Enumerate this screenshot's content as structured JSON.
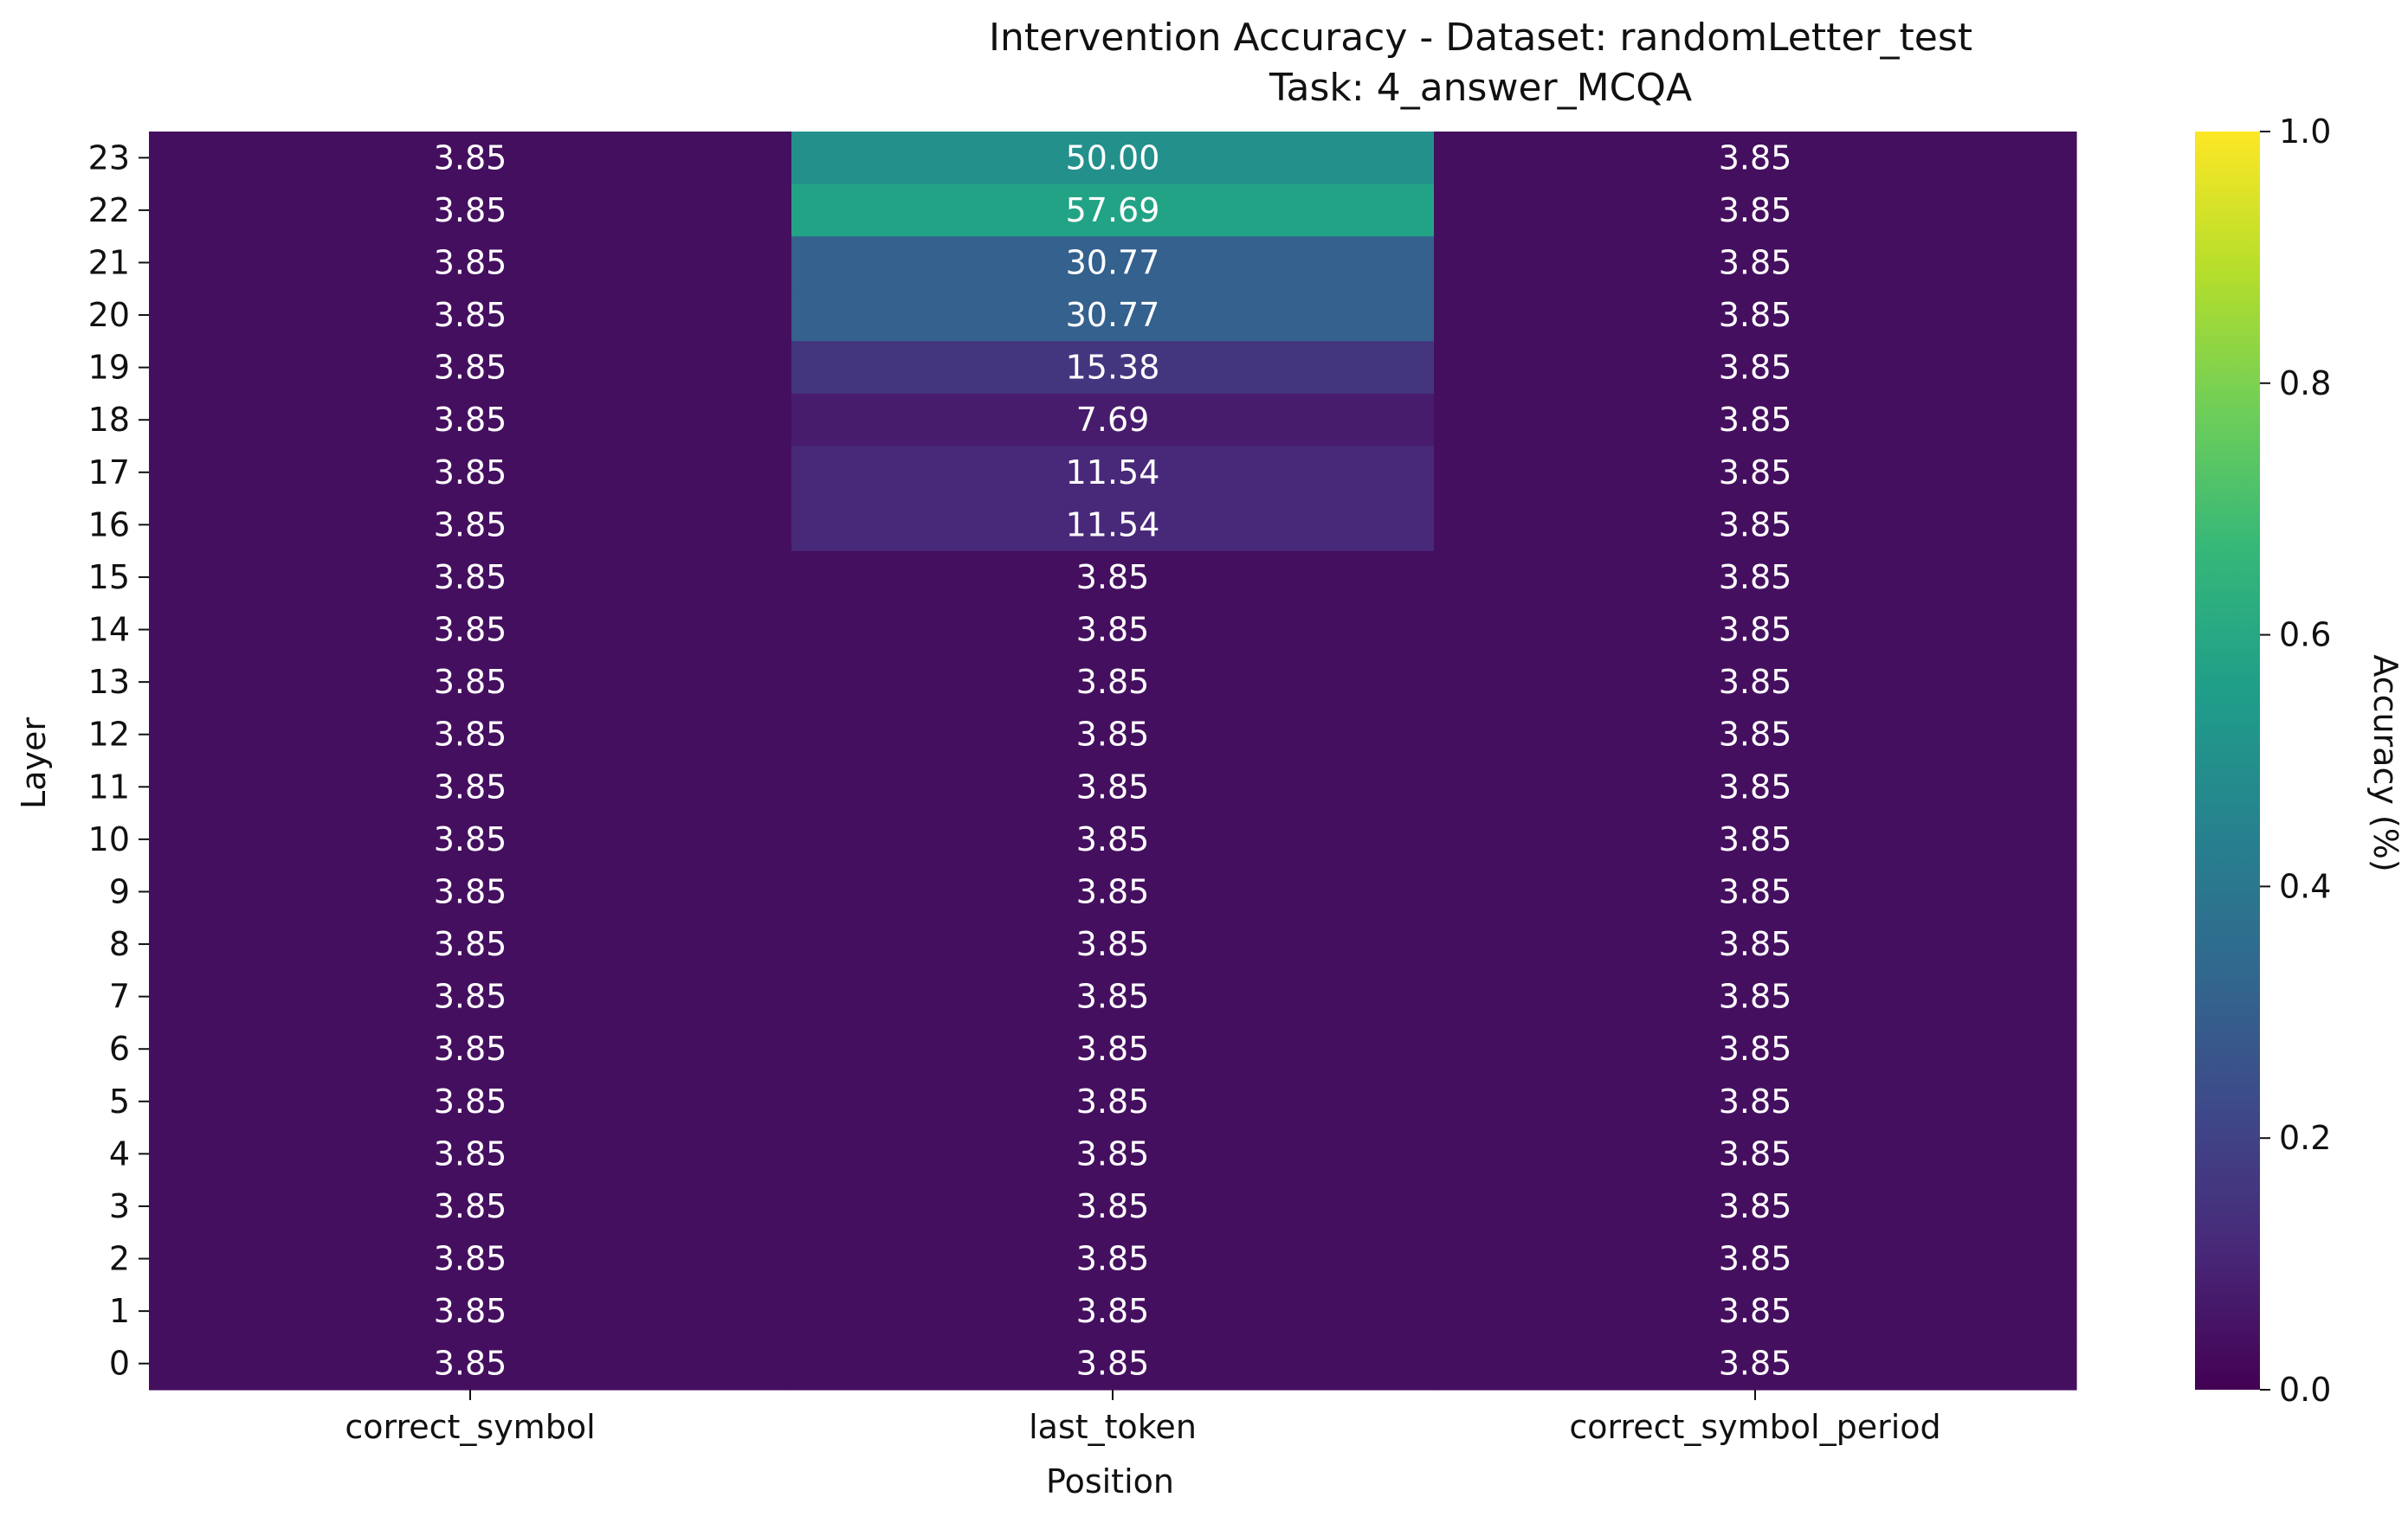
{
  "chart_data": {
    "type": "heatmap",
    "title": "Intervention Accuracy - Dataset: randomLetter_test",
    "subtitle": "Task: 4_answer_MCQA",
    "xlabel": "Position",
    "ylabel": "Layer",
    "x_categories": [
      "correct_symbol",
      "last_token",
      "correct_symbol_period"
    ],
    "y_categories": [
      "23",
      "22",
      "21",
      "20",
      "19",
      "18",
      "17",
      "16",
      "15",
      "14",
      "13",
      "12",
      "11",
      "10",
      "9",
      "8",
      "7",
      "6",
      "5",
      "4",
      "3",
      "2",
      "1",
      "0"
    ],
    "annotations": [
      [
        "3.85",
        "50.00",
        "3.85"
      ],
      [
        "3.85",
        "57.69",
        "3.85"
      ],
      [
        "3.85",
        "30.77",
        "3.85"
      ],
      [
        "3.85",
        "30.77",
        "3.85"
      ],
      [
        "3.85",
        "15.38",
        "3.85"
      ],
      [
        "3.85",
        "7.69",
        "3.85"
      ],
      [
        "3.85",
        "11.54",
        "3.85"
      ],
      [
        "3.85",
        "11.54",
        "3.85"
      ],
      [
        "3.85",
        "3.85",
        "3.85"
      ],
      [
        "3.85",
        "3.85",
        "3.85"
      ],
      [
        "3.85",
        "3.85",
        "3.85"
      ],
      [
        "3.85",
        "3.85",
        "3.85"
      ],
      [
        "3.85",
        "3.85",
        "3.85"
      ],
      [
        "3.85",
        "3.85",
        "3.85"
      ],
      [
        "3.85",
        "3.85",
        "3.85"
      ],
      [
        "3.85",
        "3.85",
        "3.85"
      ],
      [
        "3.85",
        "3.85",
        "3.85"
      ],
      [
        "3.85",
        "3.85",
        "3.85"
      ],
      [
        "3.85",
        "3.85",
        "3.85"
      ],
      [
        "3.85",
        "3.85",
        "3.85"
      ],
      [
        "3.85",
        "3.85",
        "3.85"
      ],
      [
        "3.85",
        "3.85",
        "3.85"
      ],
      [
        "3.85",
        "3.85",
        "3.85"
      ],
      [
        "3.85",
        "3.85",
        "3.85"
      ]
    ],
    "values": [
      [
        0.0385,
        0.5,
        0.0385
      ],
      [
        0.0385,
        0.5769,
        0.0385
      ],
      [
        0.0385,
        0.3077,
        0.0385
      ],
      [
        0.0385,
        0.3077,
        0.0385
      ],
      [
        0.0385,
        0.1538,
        0.0385
      ],
      [
        0.0385,
        0.0769,
        0.0385
      ],
      [
        0.0385,
        0.1154,
        0.0385
      ],
      [
        0.0385,
        0.1154,
        0.0385
      ],
      [
        0.0385,
        0.0385,
        0.0385
      ],
      [
        0.0385,
        0.0385,
        0.0385
      ],
      [
        0.0385,
        0.0385,
        0.0385
      ],
      [
        0.0385,
        0.0385,
        0.0385
      ],
      [
        0.0385,
        0.0385,
        0.0385
      ],
      [
        0.0385,
        0.0385,
        0.0385
      ],
      [
        0.0385,
        0.0385,
        0.0385
      ],
      [
        0.0385,
        0.0385,
        0.0385
      ],
      [
        0.0385,
        0.0385,
        0.0385
      ],
      [
        0.0385,
        0.0385,
        0.0385
      ],
      [
        0.0385,
        0.0385,
        0.0385
      ],
      [
        0.0385,
        0.0385,
        0.0385
      ],
      [
        0.0385,
        0.0385,
        0.0385
      ],
      [
        0.0385,
        0.0385,
        0.0385
      ],
      [
        0.0385,
        0.0385,
        0.0385
      ],
      [
        0.0385,
        0.0385,
        0.0385
      ]
    ],
    "colorbar": {
      "label": "Accuracy (%)",
      "range": [
        0.0,
        1.0
      ],
      "ticks": [
        "0.0",
        "0.2",
        "0.4",
        "0.6",
        "0.8",
        "1.0"
      ],
      "colormap": "viridis"
    },
    "colors": {
      "viridis": [
        "#440154",
        "#482878",
        "#3e4989",
        "#31688e",
        "#26828e",
        "#1f9e89",
        "#35b779",
        "#6ece58",
        "#b5de2b",
        "#fde725"
      ]
    }
  }
}
